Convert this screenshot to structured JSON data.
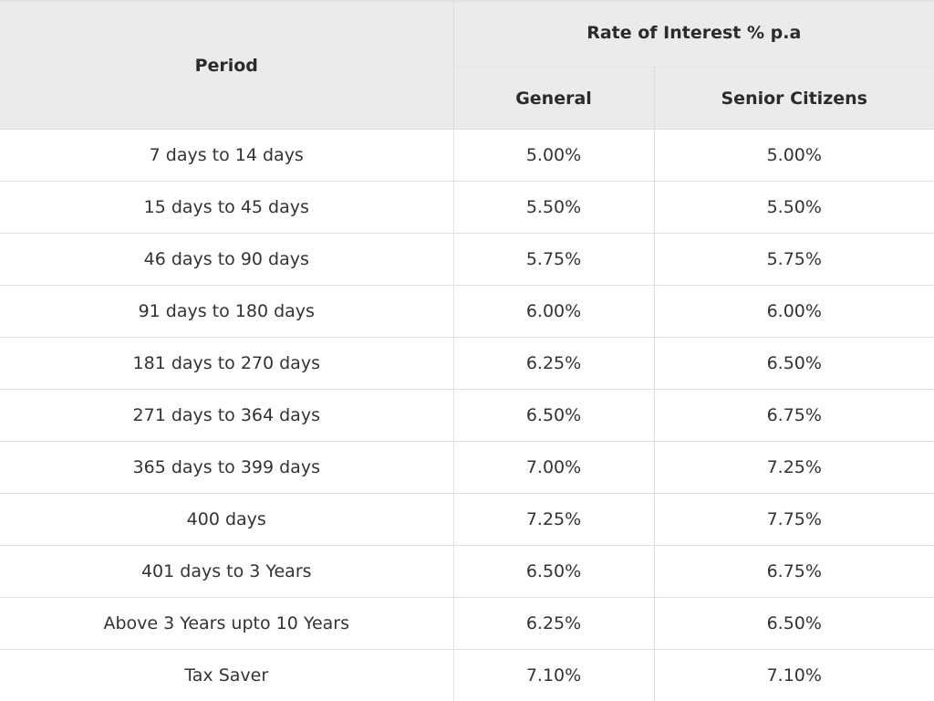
{
  "table": {
    "header": {
      "period": "Period",
      "rate_group": "Rate of Interest % p.a",
      "general": "General",
      "senior": "Senior Citizens"
    },
    "rows": [
      {
        "period": "7 days to 14 days",
        "general": "5.00%",
        "senior": "5.00%"
      },
      {
        "period": "15 days to 45 days",
        "general": "5.50%",
        "senior": "5.50%"
      },
      {
        "period": "46 days to 90 days",
        "general": "5.75%",
        "senior": "5.75%"
      },
      {
        "period": "91 days to 180 days",
        "general": "6.00%",
        "senior": "6.00%"
      },
      {
        "period": "181 days to 270 days",
        "general": "6.25%",
        "senior": "6.50%"
      },
      {
        "period": "271 days to 364 days",
        "general": "6.50%",
        "senior": "6.75%"
      },
      {
        "period": "365 days to 399 days",
        "general": "7.00%",
        "senior": "7.25%"
      },
      {
        "period": "400 days",
        "general": "7.25%",
        "senior": "7.75%"
      },
      {
        "period": "401 days to 3 Years",
        "general": "6.50%",
        "senior": "6.75%"
      },
      {
        "period": "Above 3 Years upto 10 Years",
        "general": "6.25%",
        "senior": "6.50%"
      },
      {
        "period": "Tax Saver",
        "general": "7.10%",
        "senior": "7.10%"
      }
    ]
  },
  "colors": {
    "header_bg": "#ebebeb",
    "border": "#e0e0e0",
    "text": "#333333"
  }
}
